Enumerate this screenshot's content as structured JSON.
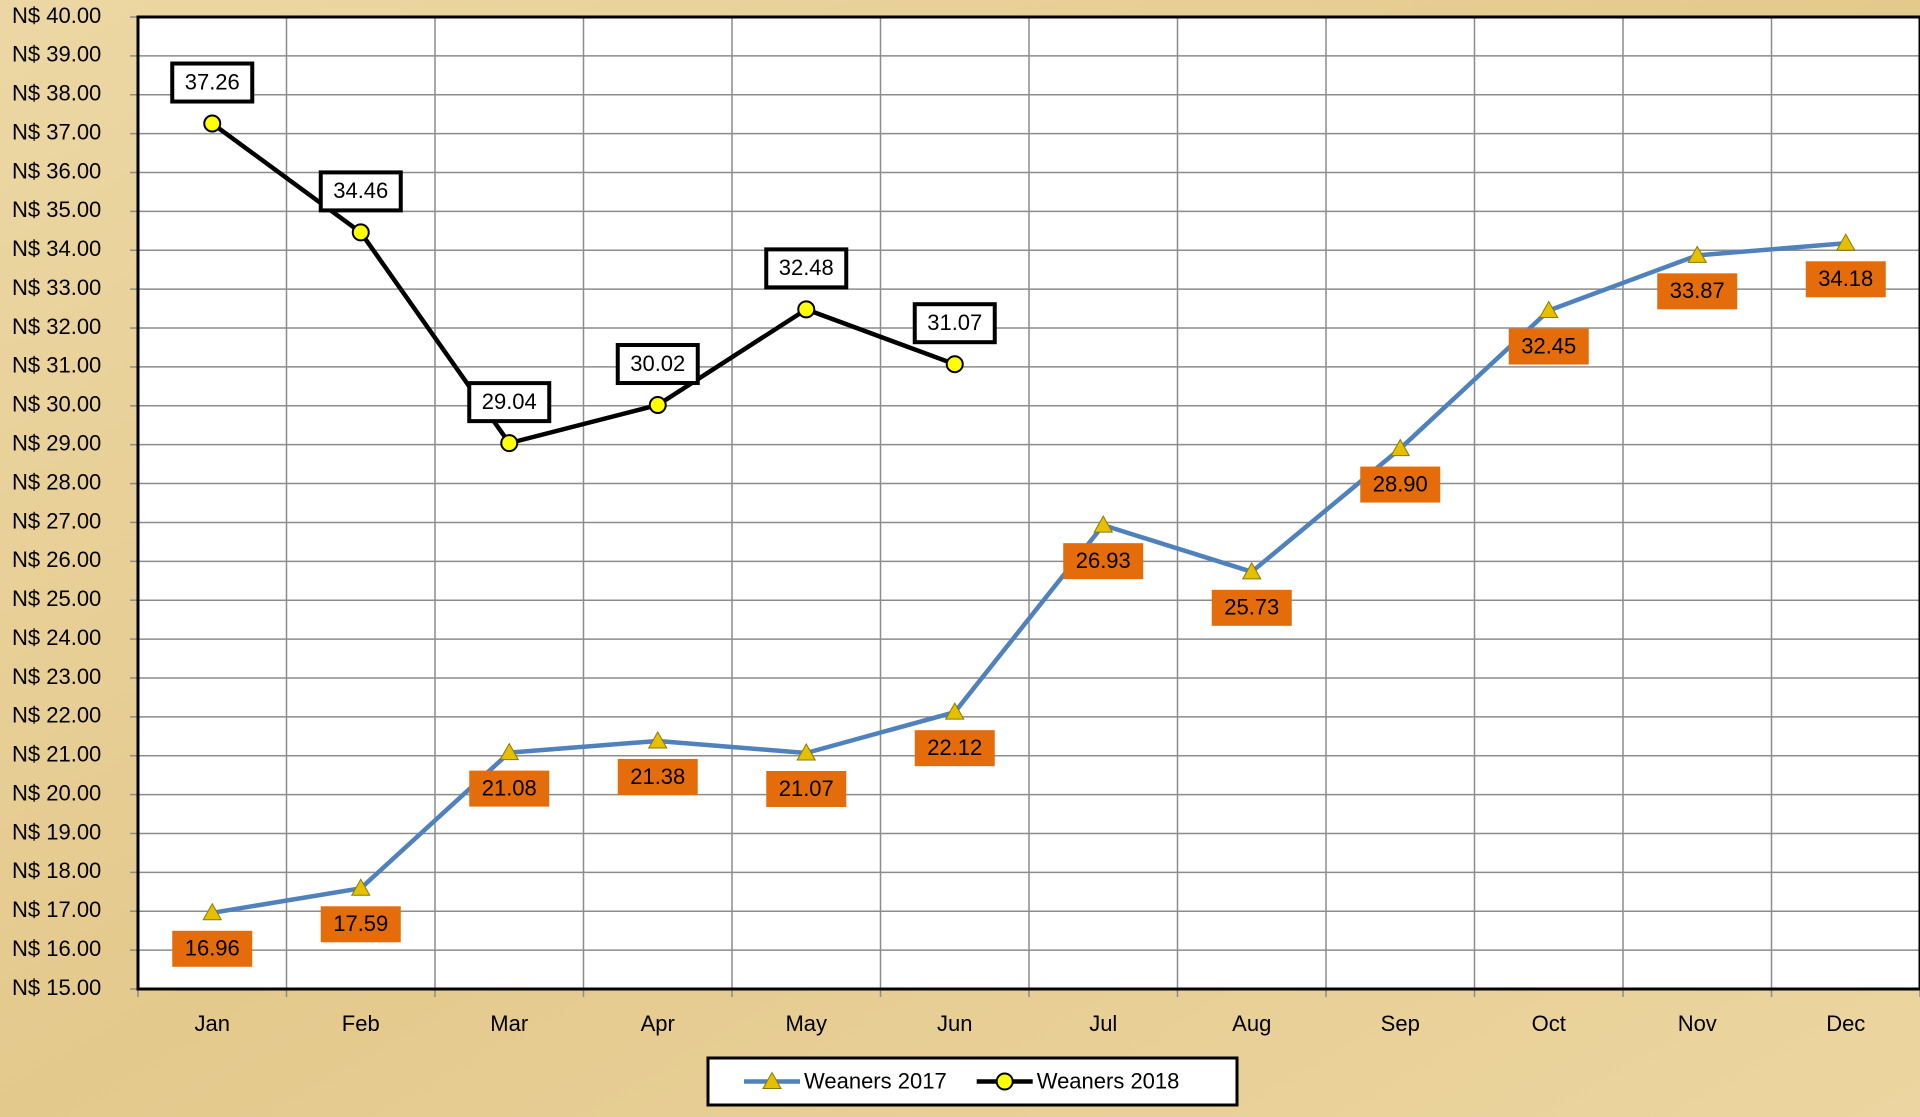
{
  "chart_data": {
    "type": "line",
    "categories": [
      "Jan",
      "Feb",
      "Mar",
      "Apr",
      "May",
      "Jun",
      "Jul",
      "Aug",
      "Sep",
      "Oct",
      "Nov",
      "Dec"
    ],
    "series": [
      {
        "name": "Weaners 2017",
        "color": "#4f81bd",
        "marker": "triangle",
        "values": [
          16.96,
          17.59,
          21.08,
          21.38,
          21.07,
          22.12,
          26.93,
          25.73,
          28.9,
          32.45,
          33.87,
          34.18
        ],
        "value_labels": [
          "16.96",
          "17.59",
          "21.08",
          "21.38",
          "21.07",
          "22.12",
          "26.93",
          "25.73",
          "28.90",
          "32.45",
          "33.87",
          "34.18"
        ]
      },
      {
        "name": "Weaners 2018",
        "color": "#000000",
        "marker": "circle",
        "values": [
          37.26,
          34.46,
          29.04,
          30.02,
          32.48,
          31.07,
          null,
          null,
          null,
          null,
          null,
          null
        ],
        "value_labels": [
          "37.26",
          "34.46",
          "29.04",
          "30.02",
          "32.48",
          "31.07",
          null,
          null,
          null,
          null,
          null,
          null
        ]
      }
    ],
    "ylim": [
      15,
      40
    ],
    "yticks": [
      {
        "value": 15,
        "label": "N$ 15.00"
      },
      {
        "value": 16,
        "label": "N$ 16.00"
      },
      {
        "value": 17,
        "label": "N$ 17.00"
      },
      {
        "value": 18,
        "label": "N$ 18.00"
      },
      {
        "value": 19,
        "label": "N$ 19.00"
      },
      {
        "value": 20,
        "label": "N$ 20.00"
      },
      {
        "value": 21,
        "label": "N$ 21.00"
      },
      {
        "value": 22,
        "label": "N$ 22.00"
      },
      {
        "value": 23,
        "label": "N$ 23.00"
      },
      {
        "value": 24,
        "label": "N$ 24.00"
      },
      {
        "value": 25,
        "label": "N$ 25.00"
      },
      {
        "value": 26,
        "label": "N$ 26.00"
      },
      {
        "value": 27,
        "label": "N$ 27.00"
      },
      {
        "value": 28,
        "label": "N$ 28.00"
      },
      {
        "value": 29,
        "label": "N$ 29.00"
      },
      {
        "value": 30,
        "label": "N$ 30.00"
      },
      {
        "value": 31,
        "label": "N$ 31.00"
      },
      {
        "value": 32,
        "label": "N$ 32.00"
      },
      {
        "value": 33,
        "label": "N$ 33.00"
      },
      {
        "value": 34,
        "label": "N$ 34.00"
      },
      {
        "value": 35,
        "label": "N$ 35.00"
      },
      {
        "value": 36,
        "label": "N$ 36.00"
      },
      {
        "value": 37,
        "label": "N$ 37.00"
      },
      {
        "value": 38,
        "label": "N$ 38.00"
      },
      {
        "value": 39,
        "label": "N$ 39.00"
      },
      {
        "value": 40,
        "label": "N$ 40.00"
      }
    ],
    "grid": true,
    "legend": "bottom"
  }
}
